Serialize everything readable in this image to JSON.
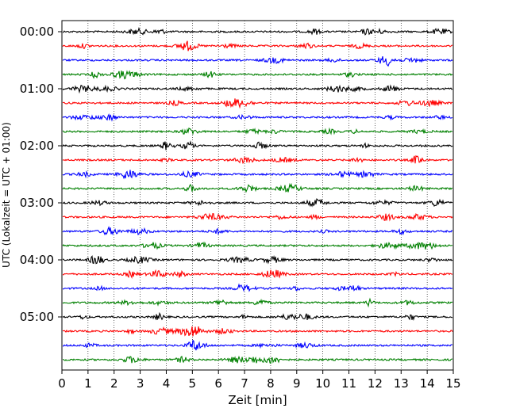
{
  "chart_data": {
    "type": "line",
    "title": "",
    "xlabel": "Zeit  [min]",
    "ylabel": "UTC (Lokalzeit = UTC + 01:00)",
    "xlim": [
      0,
      15
    ],
    "x_ticks": [
      0,
      1,
      2,
      3,
      4,
      5,
      6,
      7,
      8,
      9,
      10,
      11,
      12,
      13,
      14,
      15
    ],
    "y_tick_labels": [
      "00:00",
      "01:00",
      "02:00",
      "03:00",
      "04:00",
      "05:00"
    ],
    "y_tick_rows": [
      0,
      4,
      8,
      12,
      16,
      20
    ],
    "grid": "vertical dotted at each minute",
    "legend": "none",
    "trace_count": 24,
    "trace_colors": [
      "#000000",
      "#ff0000",
      "#0000ff",
      "#008000"
    ],
    "trace_interval_min": 15
  }
}
